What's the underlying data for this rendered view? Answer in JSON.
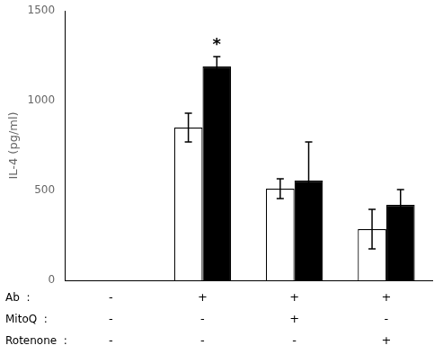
{
  "chart_data": {
    "type": "bar",
    "ylabel": "IL-4 (pg/ml)",
    "categories": [
      [
        "-",
        "-",
        "-"
      ],
      [
        "+",
        "-",
        "-"
      ],
      [
        "+",
        "+",
        "-"
      ],
      [
        "+",
        "-",
        "+"
      ]
    ],
    "row_labels": [
      "Ab  :",
      "MitoQ  :",
      "Rotenone  :"
    ],
    "series": [
      {
        "color": "#ffffff",
        "values": [
          null,
          850,
          510,
          285
        ],
        "errors": [
          null,
          80,
          55,
          110
        ]
      },
      {
        "color": "#000000",
        "values": [
          null,
          1190,
          555,
          420
        ],
        "errors": [
          null,
          55,
          215,
          85
        ]
      }
    ],
    "annotations": [
      {
        "text": "*",
        "category": 1,
        "series": 1
      }
    ],
    "ylim": [
      0,
      1500
    ],
    "yticks": [
      0,
      500,
      1000,
      1500
    ],
    "grid": false
  }
}
